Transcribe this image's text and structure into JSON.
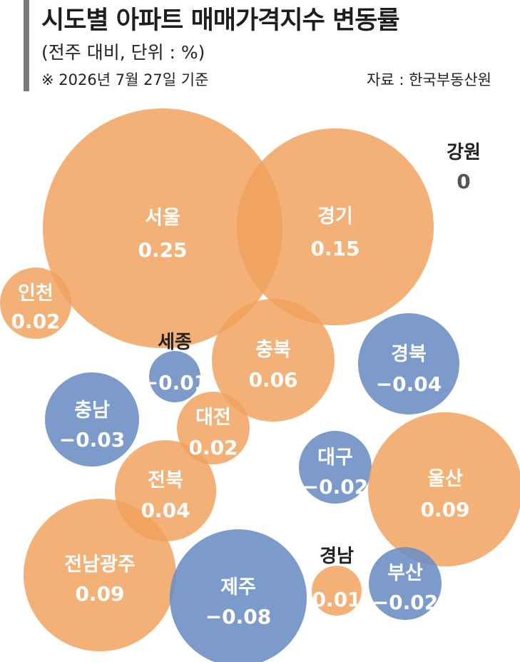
{
  "header": {
    "title": "시도별 아파트 매매가격지수 변동률",
    "subtitle": "(전주 대비, 단위 : %)",
    "note": "※ 2026년 7월 27일 기준",
    "source": "자료 : 한국부동산원"
  },
  "colors": {
    "positive": "#f0a05a",
    "negative": "#6e8fc4",
    "zero": "#555555"
  },
  "chart_data": {
    "type": "bubble",
    "title": "시도별 아파트 매매가격지수 변동률",
    "unit": "%",
    "series": [
      {
        "region": "서울",
        "value": 0.25
      },
      {
        "region": "경기",
        "value": 0.15
      },
      {
        "region": "강원",
        "value": 0
      },
      {
        "region": "인천",
        "value": 0.02
      },
      {
        "region": "세종",
        "value": -0.01
      },
      {
        "region": "충북",
        "value": 0.06
      },
      {
        "region": "경북",
        "value": -0.04
      },
      {
        "region": "충남",
        "value": -0.03
      },
      {
        "region": "대전",
        "value": 0.02
      },
      {
        "region": "대구",
        "value": -0.02
      },
      {
        "region": "울산",
        "value": 0.09
      },
      {
        "region": "전북",
        "value": 0.04
      },
      {
        "region": "전남광주",
        "value": 0.09
      },
      {
        "region": "제주",
        "value": -0.08
      },
      {
        "region": "경남",
        "value": 0.01
      },
      {
        "region": "부산",
        "value": -0.02
      }
    ],
    "value_labels": [
      "0.25",
      "0.15",
      "0",
      "0.02",
      "−0.01",
      "0.06",
      "−0.04",
      "−0.03",
      "0.02",
      "−0.02",
      "0.09",
      "0.04",
      "0.09",
      "−0.08",
      "0.01",
      "−0.02"
    ]
  }
}
